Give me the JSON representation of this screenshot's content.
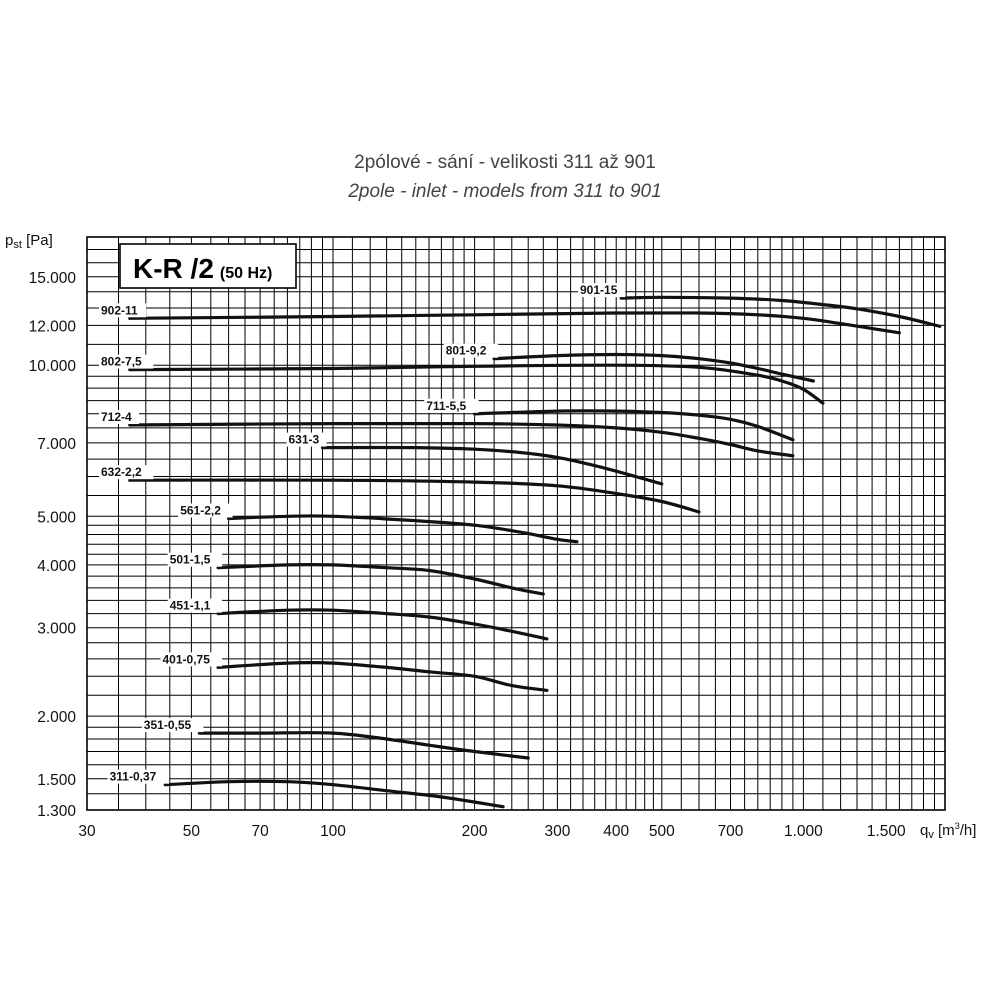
{
  "chart_data": {
    "type": "line",
    "title": "2pólové - sání - velikosti 311 až 901",
    "subtitle": "2pole - inlet - models from 311 to 901",
    "model_label": "K-R /2",
    "model_freq": "(50 Hz)",
    "ylabel": "pst [Pa]",
    "ylabel_main": "p",
    "ylabel_sub": "st",
    "ylabel_unit": " [Pa]",
    "xlabel": "qv [m3/h]",
    "xlabel_main": "q",
    "xlabel_sub": "v",
    "xlabel_unit_pre": " [m",
    "xlabel_unit_sup": "3",
    "xlabel_unit_post": "/h]",
    "x_scale": "log",
    "y_scale": "log",
    "xlim": [
      30,
      2000
    ],
    "ylim": [
      1300,
      18000
    ],
    "grid": true,
    "x_tick_values": [
      30,
      50,
      70,
      100,
      200,
      300,
      400,
      500,
      700,
      1000,
      1500
    ],
    "x_tick_labels": [
      "30",
      "50",
      "70",
      "100",
      "200",
      "300",
      "400",
      "500",
      "700",
      "1.000",
      "1.500"
    ],
    "y_tick_values": [
      15000,
      12000,
      10000,
      7000,
      5000,
      4000,
      3000,
      2000,
      1500,
      1300
    ],
    "y_tick_labels": [
      "15.000",
      "12.000",
      "10.000",
      "7.000",
      "5.000",
      "4.000",
      "3.000",
      "2.000",
      "1.500",
      "1.300"
    ],
    "series": [
      {
        "name": "902-11",
        "label_at": [
          37,
          12400
        ],
        "x": [
          37,
          100,
          200,
          400,
          600,
          800,
          1000,
          1200,
          1600
        ],
        "y": [
          12400,
          12500,
          12600,
          12700,
          12700,
          12600,
          12400,
          12100,
          11600
        ]
      },
      {
        "name": "901-15",
        "label_at": [
          410,
          13600
        ],
        "x": [
          410,
          500,
          700,
          900,
          1100,
          1300,
          1600,
          1950
        ],
        "y": [
          13600,
          13650,
          13600,
          13450,
          13200,
          12950,
          12500,
          11950
        ]
      },
      {
        "name": "802-7,5",
        "label_at": [
          37,
          9800
        ],
        "x": [
          37,
          100,
          200,
          400,
          600,
          800,
          900,
          1000,
          1100
        ],
        "y": [
          9800,
          9850,
          9950,
          10000,
          9900,
          9550,
          9300,
          8950,
          8400
        ]
      },
      {
        "name": "801-9,2",
        "label_at": [
          220,
          10300
        ],
        "x": [
          220,
          300,
          400,
          500,
          600,
          700,
          800,
          900,
          1050
        ],
        "y": [
          10300,
          10450,
          10500,
          10450,
          10300,
          10100,
          9850,
          9600,
          9300
        ]
      },
      {
        "name": "712-4",
        "label_at": [
          37,
          7600
        ],
        "x": [
          37,
          100,
          200,
          300,
          400,
          500,
          600,
          700,
          800,
          950
        ],
        "y": [
          7600,
          7650,
          7650,
          7600,
          7500,
          7350,
          7150,
          6950,
          6750,
          6600
        ]
      },
      {
        "name": "711-5,5",
        "label_at": [
          200,
          8000
        ],
        "x": [
          200,
          300,
          400,
          500,
          600,
          700,
          800,
          950
        ],
        "y": [
          8000,
          8100,
          8100,
          8050,
          7950,
          7800,
          7550,
          7100
        ]
      },
      {
        "name": "631-3",
        "label_at": [
          95,
          6850
        ],
        "x": [
          95,
          150,
          200,
          250,
          300,
          350,
          400,
          500
        ],
        "y": [
          6850,
          6850,
          6800,
          6700,
          6550,
          6350,
          6150,
          5800
        ]
      },
      {
        "name": "632-2,2",
        "label_at": [
          37,
          5900
        ],
        "x": [
          37,
          100,
          200,
          300,
          400,
          500,
          600
        ],
        "y": [
          5900,
          5900,
          5850,
          5750,
          5550,
          5350,
          5100
        ]
      },
      {
        "name": "561-2,2",
        "label_at": [
          60,
          4950
        ],
        "x": [
          60,
          80,
          100,
          150,
          200,
          250,
          300,
          330
        ],
        "y": [
          4950,
          5000,
          5000,
          4900,
          4800,
          4650,
          4500,
          4450
        ]
      },
      {
        "name": "501-1,5",
        "label_at": [
          57,
          3950
        ],
        "x": [
          57,
          80,
          100,
          130,
          160,
          200,
          240,
          280
        ],
        "y": [
          3950,
          4000,
          4000,
          3950,
          3900,
          3750,
          3600,
          3500
        ]
      },
      {
        "name": "451-1,1",
        "label_at": [
          57,
          3200
        ],
        "x": [
          57,
          80,
          100,
          130,
          160,
          200,
          240,
          285
        ],
        "y": [
          3200,
          3250,
          3250,
          3200,
          3150,
          3050,
          2950,
          2850
        ]
      },
      {
        "name": "401-0,75",
        "label_at": [
          57,
          2500
        ],
        "x": [
          57,
          80,
          100,
          130,
          160,
          200,
          240,
          285
        ],
        "y": [
          2500,
          2550,
          2550,
          2500,
          2450,
          2400,
          2300,
          2250
        ]
      },
      {
        "name": "351-0,55",
        "label_at": [
          52,
          1850
        ],
        "x": [
          52,
          70,
          100,
          130,
          160,
          200,
          260
        ],
        "y": [
          1850,
          1850,
          1850,
          1800,
          1750,
          1700,
          1650
        ]
      },
      {
        "name": "311-0,37",
        "label_at": [
          44,
          1460
        ],
        "x": [
          44,
          60,
          80,
          100,
          130,
          170,
          230
        ],
        "y": [
          1460,
          1480,
          1480,
          1460,
          1420,
          1380,
          1320
        ]
      }
    ]
  }
}
